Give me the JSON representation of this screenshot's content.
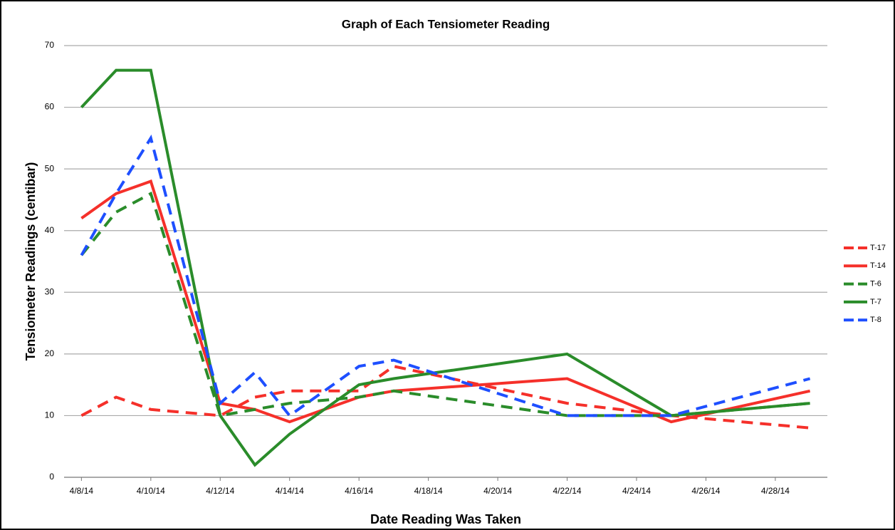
{
  "chart_data": {
    "type": "line",
    "title": "Graph of Each Tensiometer Reading",
    "x_label": "Date Reading Was Taken",
    "y_label": "Tensiometer Readings (centibar)",
    "x": [
      "4/8/14",
      "4/9/14",
      "4/10/14",
      "4/12/14",
      "4/13/14",
      "4/14/14",
      "4/16/14",
      "4/17/14",
      "4/22/14",
      "4/25/14",
      "4/29/14"
    ],
    "xlim": [
      "4/8/14",
      "4/29/14"
    ],
    "xticks": [
      "4/8/14",
      "4/10/14",
      "4/12/14",
      "4/14/14",
      "4/16/14",
      "4/18/14",
      "4/20/14",
      "4/22/14",
      "4/24/14",
      "4/26/14",
      "4/28/14"
    ],
    "ylim": [
      0,
      70
    ],
    "yticks": [
      0,
      10,
      20,
      30,
      40,
      50,
      60,
      70
    ],
    "grid": true,
    "legend": "right",
    "series": [
      {
        "name": "T-17",
        "color": "#f5302a",
        "dash": true,
        "values": [
          10,
          13,
          11,
          10,
          13,
          14,
          14,
          18,
          12,
          10,
          8
        ]
      },
      {
        "name": "T-14",
        "color": "#f5302a",
        "dash": false,
        "values": [
          42,
          46,
          48,
          12,
          11,
          9,
          13,
          14,
          16,
          9,
          14
        ]
      },
      {
        "name": "T-6",
        "color": "#2a8c2a",
        "dash": true,
        "values": [
          36,
          43,
          46,
          10,
          11,
          12,
          13,
          14,
          10,
          10,
          12
        ]
      },
      {
        "name": "T-7",
        "color": "#2a8c2a",
        "dash": false,
        "values": [
          60,
          66,
          66,
          10,
          2,
          7,
          15,
          16,
          20,
          10,
          12
        ]
      },
      {
        "name": "T-8",
        "color": "#1e4fff",
        "dash": true,
        "values": [
          36,
          46,
          55,
          12,
          17,
          10,
          18,
          19,
          10,
          10,
          16
        ]
      }
    ]
  }
}
